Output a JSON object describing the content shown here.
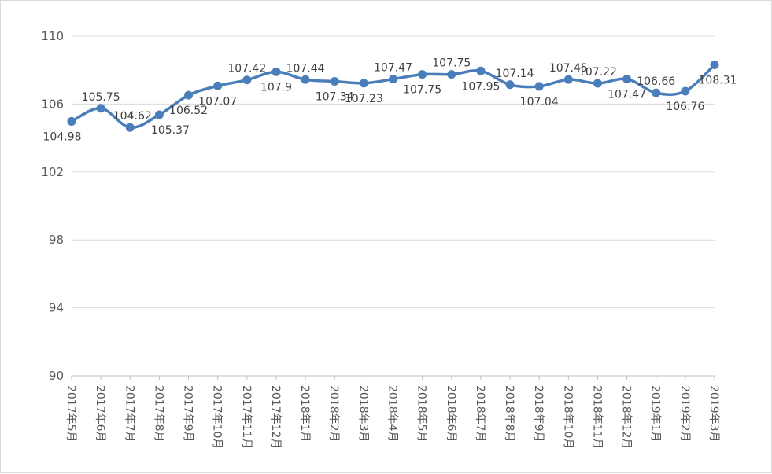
{
  "chart_data": {
    "type": "line",
    "title": "",
    "xlabel": "",
    "ylabel": "",
    "ylim": [
      90,
      110
    ],
    "yticks": [
      90,
      94,
      98,
      102,
      106,
      110
    ],
    "grid": true,
    "legend": "none",
    "smooth": true,
    "color": "#4a7ebb",
    "categories": [
      "2017年5月",
      "2017年6月",
      "2017年7月",
      "2017年8月",
      "2017年9月",
      "2017年10月",
      "2017年11月",
      "2017年12月",
      "2018年1月",
      "2018年2月",
      "2018年3月",
      "2018年4月",
      "2018年5月",
      "2018年6月",
      "2018年7月",
      "2018年8月",
      "2018年9月",
      "2018年10月",
      "2018年11月",
      "2018年12月",
      "2019年1月",
      "2019年2月",
      "2019年3月"
    ],
    "series": [
      {
        "values": [
          104.98,
          105.75,
          104.62,
          105.37,
          106.52,
          107.07,
          107.42,
          107.9,
          107.44,
          107.34,
          107.23,
          107.47,
          107.75,
          107.75,
          107.95,
          107.14,
          107.04,
          107.45,
          107.22,
          107.47,
          106.66,
          106.76,
          108.31
        ],
        "labels": [
          "104.98",
          "105.75",
          "104.62",
          "105.37",
          "106.52",
          "107.07",
          "107.42",
          "107.9",
          "107.44",
          "107.34",
          "107.23",
          "107.47",
          "107.75",
          "107.75",
          "107.95",
          "107.14",
          "107.04",
          "107.45",
          "107.22",
          "107.47",
          "106.66",
          "106.76",
          "108.31"
        ]
      }
    ]
  }
}
